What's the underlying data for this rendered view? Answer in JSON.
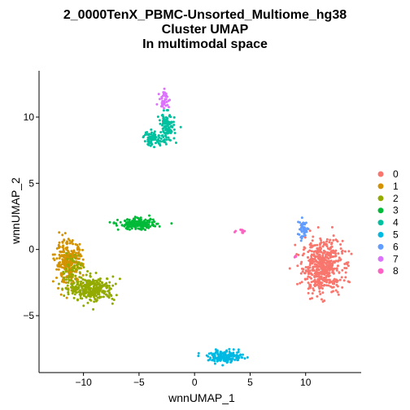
{
  "chart_data": {
    "type": "scatter",
    "title": [
      "2_0000TenX_PBMC-Unsorted_Multiome_hg38",
      "Cluster UMAP",
      "In multimodal space"
    ],
    "xlabel": "wnnUMAP_1",
    "ylabel": "wnnUMAP_2",
    "xlim": [
      -14,
      15
    ],
    "ylim": [
      -9.3,
      13.5
    ],
    "x_ticks": [
      -10,
      -5,
      0,
      5,
      10
    ],
    "y_ticks": [
      -5,
      0,
      5,
      10
    ],
    "grid": false,
    "legend_position": "right",
    "series": [
      {
        "name": "0",
        "color": "#F8766D",
        "clusters": [
          {
            "x": 11.5,
            "y": -1.3,
            "sx": 0.9,
            "sy": 1.0,
            "n": 520
          }
        ]
      },
      {
        "name": "1",
        "color": "#D39200",
        "clusters": [
          {
            "x": -11.3,
            "y": -1.0,
            "sx": 0.6,
            "sy": 0.8,
            "n": 300
          }
        ]
      },
      {
        "name": "2",
        "color": "#93AA00",
        "clusters": [
          {
            "x": -9.2,
            "y": -3.0,
            "sx": 1.0,
            "sy": 0.45,
            "n": 300
          },
          {
            "x": -11.0,
            "y": -1.6,
            "sx": 0.5,
            "sy": 0.7,
            "n": 60
          }
        ]
      },
      {
        "name": "3",
        "color": "#00BA38",
        "clusters": [
          {
            "x": -5.1,
            "y": 1.9,
            "sx": 0.85,
            "sy": 0.2,
            "n": 190
          }
        ]
      },
      {
        "name": "4",
        "color": "#00C19F",
        "clusters": [
          {
            "x": -2.5,
            "y": 9.2,
            "sx": 0.35,
            "sy": 0.55,
            "n": 110
          },
          {
            "x": -3.7,
            "y": 8.4,
            "sx": 0.45,
            "sy": 0.3,
            "n": 70
          }
        ]
      },
      {
        "name": "5",
        "color": "#00B9E3",
        "clusters": [
          {
            "x": 2.8,
            "y": -8.1,
            "sx": 0.8,
            "sy": 0.22,
            "n": 170
          }
        ]
      },
      {
        "name": "6",
        "color": "#619CFF",
        "clusters": [
          {
            "x": 9.8,
            "y": 1.5,
            "sx": 0.25,
            "sy": 0.35,
            "n": 45
          }
        ]
      },
      {
        "name": "7",
        "color": "#DB72FB",
        "clusters": [
          {
            "x": -2.7,
            "y": 11.3,
            "sx": 0.22,
            "sy": 0.35,
            "n": 40
          }
        ]
      },
      {
        "name": "8",
        "color": "#FF61C3",
        "clusters": [
          {
            "x": 4.3,
            "y": 1.4,
            "sx": 0.1,
            "sy": 0.1,
            "n": 8
          },
          {
            "x": 3.7,
            "y": 1.4,
            "sx": 0.05,
            "sy": 0.05,
            "n": 2
          },
          {
            "x": 9.0,
            "y": -0.5,
            "sx": 0.12,
            "sy": 0.06,
            "n": 4
          }
        ]
      }
    ]
  }
}
